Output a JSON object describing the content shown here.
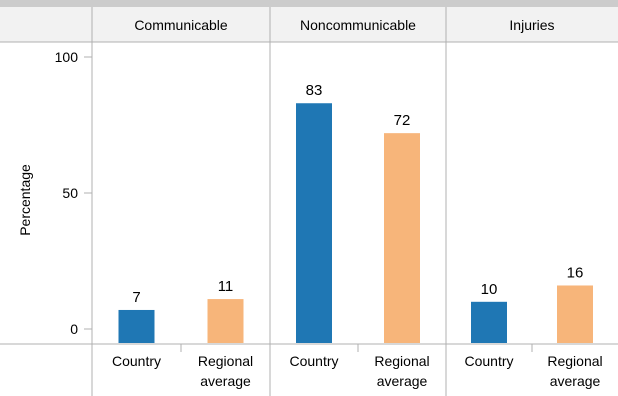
{
  "colors": {
    "country": "#1f77b4",
    "regional": "#f7b57a",
    "top_band": "#cccccc",
    "header_bg": "#f2f2f2",
    "frame": "#b0b0b0"
  },
  "chart_data": {
    "type": "bar",
    "title": "",
    "ylabel": "Percentage",
    "ylim": [
      0,
      100
    ],
    "yticks": [
      "0",
      "50",
      "100"
    ],
    "grid": false,
    "legend": "none",
    "facets": [
      {
        "label": "Communicable",
        "categories": [
          {
            "lines": [
              "Country"
            ],
            "value": 7,
            "value_label": "7",
            "series": "country"
          },
          {
            "lines": [
              "Regional",
              "average"
            ],
            "value": 11,
            "value_label": "11",
            "series": "regional"
          }
        ]
      },
      {
        "label": "Noncommunicable",
        "categories": [
          {
            "lines": [
              "Country"
            ],
            "value": 83,
            "value_label": "83",
            "series": "country"
          },
          {
            "lines": [
              "Regional",
              "average"
            ],
            "value": 72,
            "value_label": "72",
            "series": "regional"
          }
        ]
      },
      {
        "label": "Injuries",
        "categories": [
          {
            "lines": [
              "Country"
            ],
            "value": 10,
            "value_label": "10",
            "series": "country"
          },
          {
            "lines": [
              "Regional",
              "average"
            ],
            "value": 16,
            "value_label": "16",
            "series": "regional"
          }
        ]
      }
    ]
  }
}
